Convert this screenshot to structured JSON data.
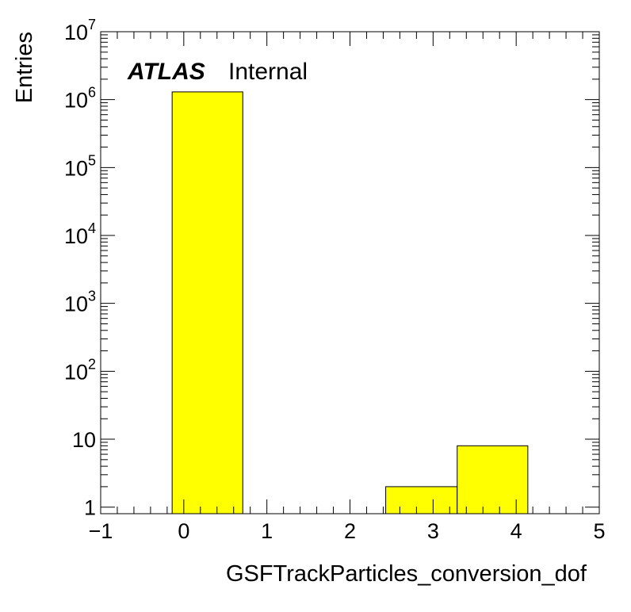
{
  "chart_data": {
    "type": "bar",
    "style": "histogram",
    "xlabel": "GSFTrackParticles_conversion_dof",
    "ylabel": "Entries",
    "label_bold": "ATLAS",
    "label_rest": "Internal",
    "xlim": [
      -1,
      5
    ],
    "ylim": [
      0.8,
      10000000
    ],
    "yscale": "log",
    "grid": false,
    "bar_color": "#ffff00",
    "edge_color": "#000000",
    "x_ticks": [
      "−1",
      "0",
      "1",
      "2",
      "3",
      "4",
      "5"
    ],
    "y_ticks": [
      {
        "base": "1",
        "exp": ""
      },
      {
        "base": "10",
        "exp": ""
      },
      {
        "base": "10",
        "exp": "2"
      },
      {
        "base": "10",
        "exp": "3"
      },
      {
        "base": "10",
        "exp": "4"
      },
      {
        "base": "10",
        "exp": "5"
      },
      {
        "base": "10",
        "exp": "6"
      },
      {
        "base": "10",
        "exp": "7"
      }
    ],
    "bins": [
      {
        "x_low": -0.14,
        "x_high": 0.71,
        "value": 1300000
      },
      {
        "x_low": 0.71,
        "x_high": 1.57,
        "value": 0
      },
      {
        "x_low": 1.57,
        "x_high": 2.43,
        "value": 0
      },
      {
        "x_low": 2.43,
        "x_high": 3.29,
        "value": 2
      },
      {
        "x_low": 3.29,
        "x_high": 4.14,
        "value": 8
      }
    ]
  }
}
